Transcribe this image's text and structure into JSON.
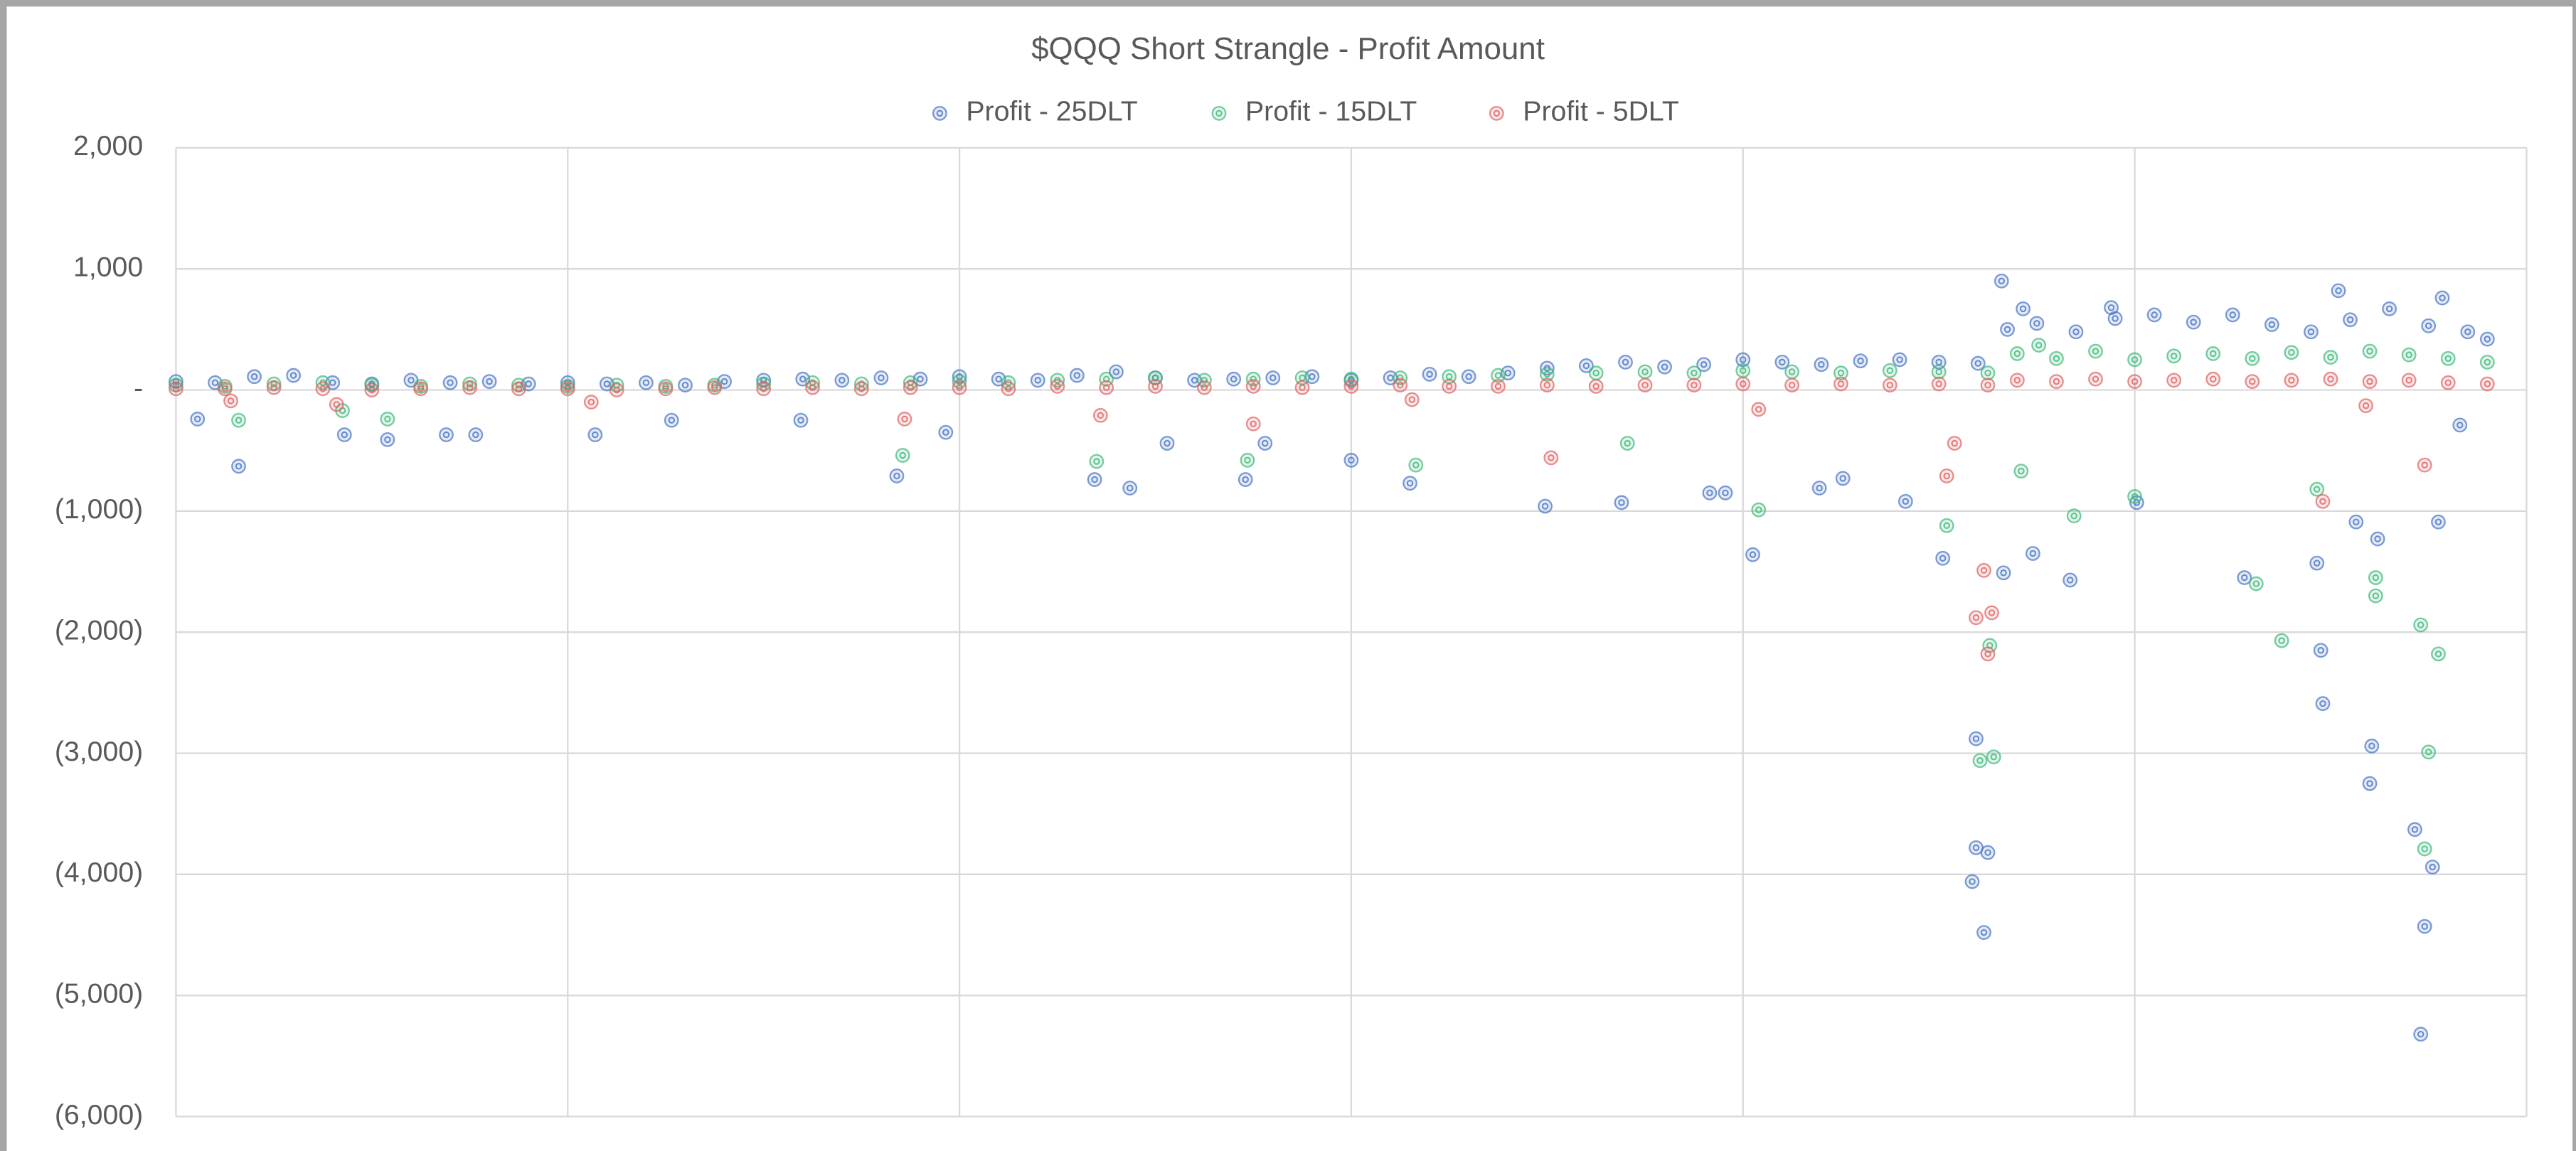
{
  "chart_data": {
    "type": "scatter",
    "title": "$QQQ Short Strangle - Profit Amount",
    "xlim": [
      0,
      1200
    ],
    "xticks": [
      0,
      200,
      400,
      600,
      800,
      1000,
      1200
    ],
    "ylim": [
      -6000,
      2000
    ],
    "yticks": [
      {
        "value": 2000,
        "label": "2,000"
      },
      {
        "value": 1000,
        "label": "1,000"
      },
      {
        "value": 0,
        "label": "-"
      },
      {
        "value": -1000,
        "label": "(1,000)"
      },
      {
        "value": -2000,
        "label": "(2,000)"
      },
      {
        "value": -3000,
        "label": "(3,000)"
      },
      {
        "value": -4000,
        "label": "(4,000)"
      },
      {
        "value": -5000,
        "label": "(5,000)"
      },
      {
        "value": -6000,
        "label": "(6,000)"
      }
    ],
    "grid": true,
    "legend": "top",
    "series": [
      {
        "name": "Profit - 25DLT",
        "color": "#4472c4",
        "x": [
          0,
          20,
          40,
          60,
          80,
          100,
          120,
          140,
          160,
          180,
          200,
          220,
          240,
          260,
          280,
          300,
          320,
          340,
          360,
          380,
          400,
          420,
          440,
          460,
          480,
          500,
          520,
          540,
          560,
          580,
          600,
          620,
          640,
          660,
          680,
          700,
          720,
          740,
          760,
          780,
          800,
          820,
          840,
          860,
          880,
          900,
          920,
          935,
          950,
          970,
          990,
          1010,
          1030,
          1050,
          1070,
          1090,
          1110,
          1130,
          1150,
          1170,
          1180,
          32,
          11,
          86,
          108,
          138,
          153,
          214,
          253,
          319,
          368,
          393,
          469,
          487,
          506,
          546,
          556,
          600,
          630,
          699,
          738,
          805,
          783,
          791,
          839,
          851,
          883,
          902,
          919,
          919,
          917,
          923,
          925,
          933,
          948,
          967,
          1001,
          1056,
          1093,
          1095,
          1096,
          1121,
          1120,
          1143,
          1152,
          1148,
          1146,
          1155,
          1166,
          1124,
          1113,
          932,
          943,
          988,
          1104,
          1157
        ],
        "values": [
          70,
          60,
          110,
          120,
          60,
          50,
          80,
          60,
          70,
          50,
          60,
          50,
          60,
          40,
          70,
          80,
          90,
          80,
          100,
          90,
          110,
          90,
          80,
          120,
          150,
          100,
          80,
          90,
          100,
          110,
          80,
          100,
          130,
          110,
          140,
          180,
          200,
          230,
          190,
          210,
          250,
          230,
          210,
          240,
          250,
          230,
          220,
          500,
          550,
          480,
          590,
          620,
          560,
          620,
          540,
          480,
          580,
          670,
          530,
          480,
          420,
          -630,
          -240,
          -370,
          -410,
          -370,
          -370,
          -370,
          -250,
          -250,
          -710,
          -350,
          -740,
          -810,
          -440,
          -740,
          -440,
          -580,
          -770,
          -960,
          -930,
          -1360,
          -850,
          -850,
          -810,
          -730,
          -920,
          -1390,
          -2880,
          -3780,
          -4060,
          -4480,
          -3820,
          -1510,
          -1350,
          -1570,
          -930,
          -1550,
          -1430,
          -2150,
          -2590,
          -2940,
          -3250,
          -3630,
          -3940,
          -4430,
          -5320,
          -1090,
          -290,
          -1230,
          -1090,
          900,
          670,
          680,
          820,
          760
        ]
      },
      {
        "name": "Profit - 15DLT",
        "color": "#3cb878",
        "x": [
          0,
          25,
          50,
          75,
          100,
          125,
          150,
          175,
          200,
          225,
          250,
          275,
          300,
          325,
          350,
          375,
          400,
          425,
          450,
          475,
          500,
          525,
          550,
          575,
          600,
          625,
          650,
          675,
          700,
          725,
          750,
          775,
          800,
          825,
          850,
          875,
          900,
          925,
          940,
          960,
          980,
          1000,
          1020,
          1040,
          1060,
          1080,
          1100,
          1120,
          1140,
          1160,
          1180,
          32,
          85,
          108,
          371,
          470,
          547,
          633,
          741,
          808,
          904,
          921,
          928,
          926,
          942,
          969,
          1000,
          1062,
          1075,
          1093,
          1123,
          1123,
          1146,
          1150,
          1148,
          1155,
          951
        ],
        "values": [
          40,
          30,
          50,
          60,
          40,
          30,
          50,
          40,
          30,
          40,
          30,
          40,
          50,
          60,
          50,
          60,
          70,
          60,
          80,
          90,
          100,
          80,
          90,
          100,
          90,
          100,
          110,
          120,
          130,
          140,
          150,
          140,
          160,
          150,
          140,
          160,
          150,
          140,
          300,
          260,
          320,
          250,
          280,
          300,
          260,
          310,
          270,
          320,
          290,
          260,
          230,
          -250,
          -170,
          -240,
          -540,
          -590,
          -580,
          -620,
          -440,
          -990,
          -1120,
          -3060,
          -3030,
          -2110,
          -670,
          -1040,
          -880,
          -1600,
          -2070,
          -820,
          -1700,
          -1550,
          -1940,
          -2990,
          -3790,
          -2180,
          370
        ]
      },
      {
        "name": "Profit - 5DLT",
        "color": "#e06060",
        "x": [
          0,
          25,
          50,
          75,
          100,
          125,
          150,
          175,
          200,
          225,
          250,
          275,
          300,
          325,
          350,
          375,
          400,
          425,
          450,
          475,
          500,
          525,
          550,
          575,
          600,
          625,
          650,
          675,
          700,
          725,
          750,
          775,
          800,
          825,
          850,
          875,
          900,
          925,
          940,
          960,
          980,
          1000,
          1020,
          1040,
          1060,
          1080,
          1100,
          1120,
          1140,
          1160,
          1180,
          28,
          82,
          212,
          372,
          472,
          550,
          631,
          702,
          808,
          904,
          923,
          919,
          927,
          925,
          908,
          1096,
          1118,
          1148
        ],
        "values": [
          10,
          10,
          20,
          10,
          0,
          10,
          20,
          10,
          10,
          0,
          10,
          20,
          10,
          20,
          10,
          20,
          20,
          10,
          30,
          20,
          30,
          20,
          30,
          20,
          30,
          40,
          30,
          30,
          40,
          30,
          40,
          40,
          50,
          40,
          50,
          40,
          50,
          40,
          80,
          70,
          90,
          70,
          80,
          90,
          70,
          80,
          90,
          70,
          80,
          60,
          50,
          -90,
          -120,
          -100,
          -240,
          -210,
          -280,
          -80,
          -560,
          -160,
          -710,
          -1490,
          -1880,
          -1840,
          -2180,
          -440,
          -920,
          -130,
          -620
        ]
      }
    ]
  }
}
